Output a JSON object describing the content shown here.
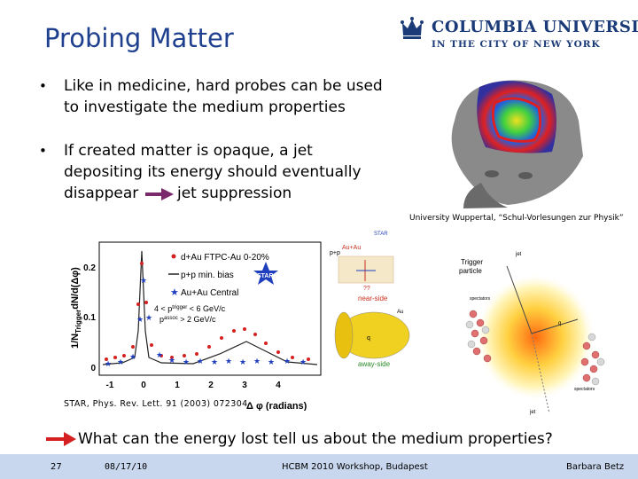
{
  "slide": {
    "title": "Probing Matter",
    "logo": {
      "name": "COLUMBIA UNIVERSITY",
      "subtitle": "IN THE CITY OF NEW YORK"
    },
    "bullets": [
      {
        "lines": [
          "Like in medicine, hard probes can be used",
          "to investigate the medium properties"
        ]
      },
      {
        "lines": [
          "If created matter is opaque, a jet",
          "depositing its energy should eventually",
          "disappear",
          "jet suppression"
        ]
      }
    ],
    "image_credit": "University Wuppertal, “Schul-Vorlesungen zur Physik”",
    "plot": {
      "ylabel": "1/N",
      "ylabel_sub": "Trigger",
      "ylabel_rest": "dN/d(Δφ)",
      "xlabel": "Δ φ (radians)",
      "xticks": [
        "-1",
        "0",
        "1",
        "2",
        "3",
        "4"
      ],
      "yticks": [
        "0.2",
        "0.1",
        "0"
      ],
      "legend": [
        "d+Au FTPC-Au 0-20%",
        "p+p min. bias",
        "Au+Au Central"
      ],
      "cut_line1": "4 < p",
      "cut_line1_sup": "trigger",
      "cut_line1_end": " < 6 GeV/c",
      "cut_line2": "p",
      "cut_line2_sup": "assoc",
      "cut_line2_end": " > 2 GeV/c",
      "star": "STAR",
      "series_colors": {
        "dAu": "#d62020",
        "pp": "#222222",
        "AuAu": "#1f3fbf"
      }
    },
    "citation": "STAR, Phys. Rev. Lett. 91 (2003) 072304",
    "diagram": {
      "pp": "p+p",
      "auau": "Au+Au",
      "star": "STAR",
      "qq": "??",
      "near_side": "near-side",
      "away_side": "away-side",
      "au": "Au",
      "q": "q"
    },
    "jet_figure": {
      "trigger": "Trigger",
      "particle": "particle",
      "jet": "jet",
      "spectators": "spectators",
      "q": "q"
    },
    "question": "What can the energy lost tell us about the medium properties?",
    "footer": {
      "slide_number": "27",
      "date": "08/17/10",
      "event": "HCBM 2010 Workshop, Budapest",
      "author": "Barbara Betz"
    }
  }
}
